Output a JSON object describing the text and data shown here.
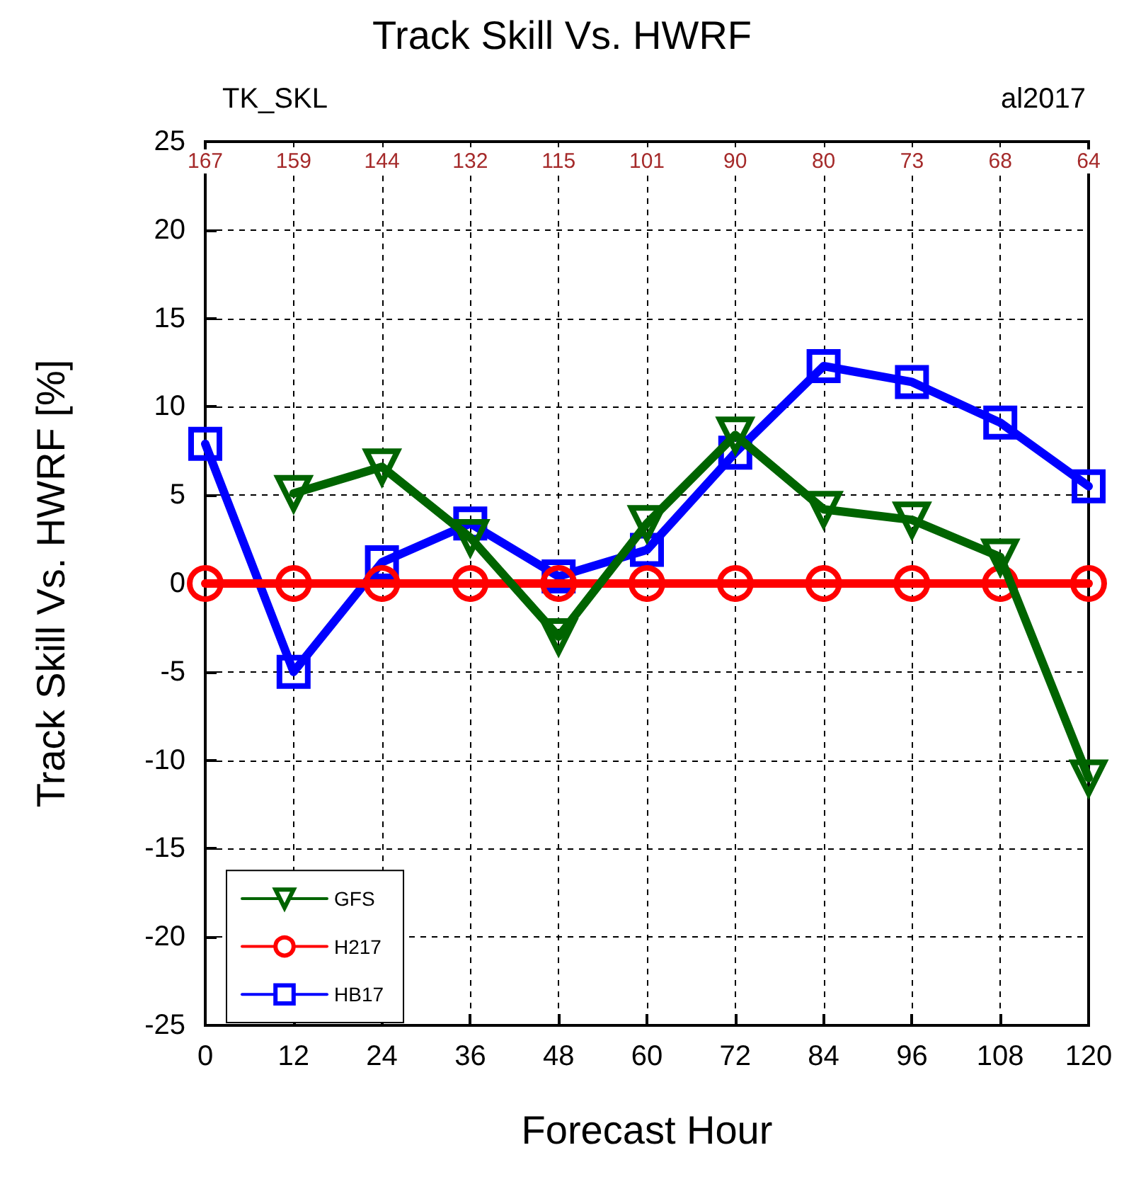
{
  "chart_data": {
    "type": "line",
    "title": "Track Skill Vs. HWRF",
    "xlabel": "Forecast Hour",
    "ylabel": "Track Skill Vs. HWRF [%]",
    "annotations": [
      "TK_SKL",
      "al2017",
      {
        "text": "167",
        "x": 0
      },
      {
        "text": "159",
        "x": 12
      },
      {
        "text": "144",
        "x": 24
      },
      {
        "text": "132",
        "x": 36
      },
      {
        "text": "115",
        "x": 48
      },
      {
        "text": "101",
        "x": 60
      },
      {
        "text": "90",
        "x": 72
      },
      {
        "text": "80",
        "x": 84
      },
      {
        "text": "73",
        "x": 96
      },
      {
        "text": "68",
        "x": 108
      },
      {
        "text": "64",
        "x": 120
      }
    ],
    "x": [
      0,
      12,
      24,
      36,
      48,
      60,
      72,
      84,
      96,
      108,
      120
    ],
    "series": [
      {
        "name": "GFS",
        "color": "#006400",
        "marker": "triangle",
        "values": [
          null,
          5.1,
          6.6,
          2.6,
          -3.0,
          3.4,
          8.4,
          4.2,
          3.6,
          1.5,
          -11.0
        ]
      },
      {
        "name": "H217",
        "color": "#ff0000",
        "marker": "circle",
        "values": [
          0,
          0,
          0,
          0,
          0,
          0,
          0,
          0,
          0,
          0,
          0
        ]
      },
      {
        "name": "HB17",
        "color": "#0000ff",
        "marker": "square",
        "values": [
          7.9,
          -5.0,
          1.2,
          3.4,
          0.4,
          1.9,
          7.4,
          12.3,
          11.4,
          9.1,
          5.5
        ]
      }
    ],
    "xlim": [
      0,
      120
    ],
    "xticks": [
      0,
      12,
      24,
      36,
      48,
      60,
      72,
      84,
      96,
      108,
      120
    ],
    "ylim": [
      -25,
      25
    ],
    "yticks": [
      -25,
      -20,
      -15,
      -10,
      -5,
      0,
      5,
      10,
      15,
      20,
      25
    ],
    "grid": true,
    "legend": "bottom left",
    "line_style": "solid"
  }
}
